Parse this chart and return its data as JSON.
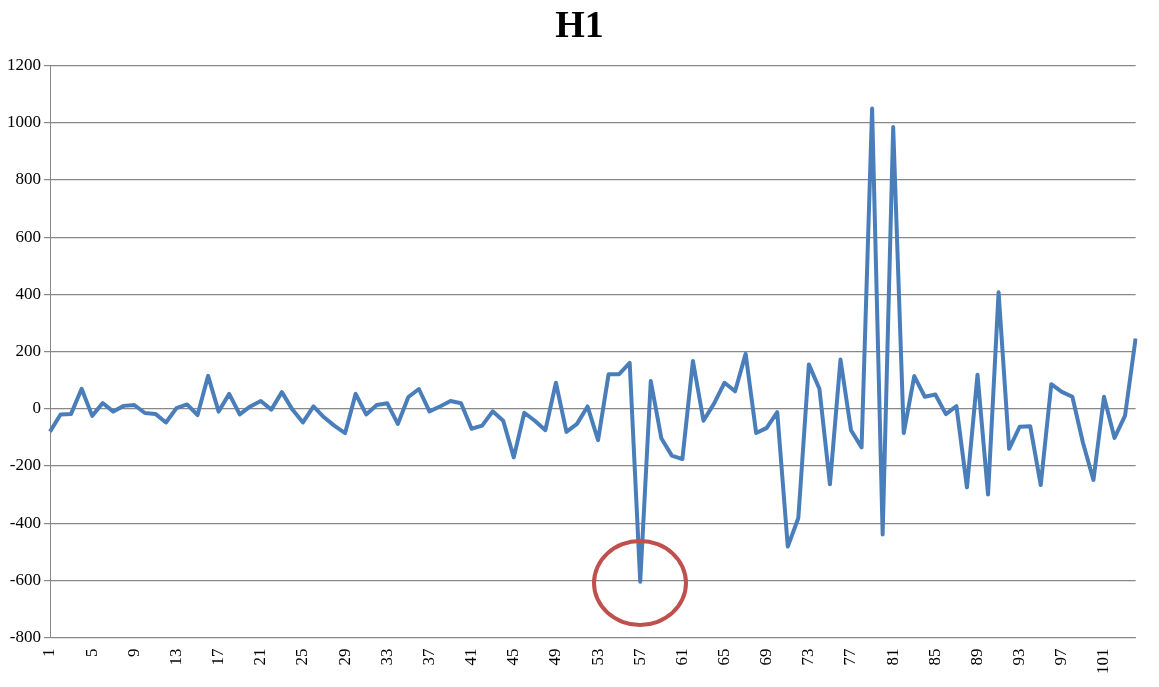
{
  "chart_data": {
    "type": "line",
    "title": "H1",
    "categories": [
      "1",
      null,
      null,
      null,
      "5",
      null,
      null,
      null,
      "9",
      null,
      null,
      null,
      "13",
      null,
      null,
      null,
      "17",
      null,
      null,
      null,
      "21",
      null,
      null,
      null,
      "25",
      null,
      null,
      null,
      "29",
      null,
      null,
      null,
      "33",
      null,
      null,
      null,
      "37",
      null,
      null,
      null,
      "41",
      null,
      null,
      null,
      "45",
      null,
      null,
      null,
      "49",
      null,
      null,
      null,
      "53",
      null,
      null,
      null,
      "57",
      null,
      null,
      null,
      "61",
      null,
      null,
      null,
      "65",
      null,
      null,
      null,
      "69",
      null,
      null,
      null,
      "73",
      null,
      null,
      null,
      "77",
      null,
      null,
      null,
      "81",
      null,
      null,
      null,
      "85",
      null,
      null,
      null,
      "89",
      null,
      null,
      null,
      "93",
      null,
      null,
      null,
      "97",
      null,
      null,
      null,
      "101",
      null,
      null,
      null
    ],
    "series": [
      {
        "color": "#4a7ebb",
        "values": [
          -80,
          -20,
          -18,
          70,
          -25,
          20,
          -10,
          10,
          13,
          -15,
          -18,
          -48,
          2,
          15,
          -22,
          115,
          -10,
          52,
          -20,
          8,
          27,
          -3,
          58,
          -3,
          -48,
          8,
          -30,
          -60,
          -85,
          52,
          -20,
          13,
          19,
          -53,
          41,
          69,
          -9,
          8,
          27,
          19,
          -70,
          -59,
          -9,
          -42,
          -170,
          -14,
          -42,
          -75,
          91,
          -81,
          -53,
          8,
          -110,
          121,
          121,
          160,
          -605,
          97,
          -103,
          -164,
          -176,
          167,
          -42,
          18,
          91,
          61,
          192,
          -85,
          -67,
          -12,
          -482,
          -382,
          155,
          70,
          -264,
          172,
          -75,
          -135,
          1050,
          -440,
          985,
          -85,
          114,
          42,
          50,
          -19,
          9,
          -275,
          119,
          -300,
          407,
          -140,
          -63,
          -61,
          -267,
          86,
          59,
          42,
          -118,
          -249,
          42,
          -102,
          -24,
          246
        ]
      }
    ],
    "ylim": [
      -800,
      1200
    ],
    "yticks": [
      -800,
      -600,
      -400,
      -200,
      0,
      200,
      400,
      600,
      800,
      1000,
      1200
    ],
    "grid": "y",
    "legend": false,
    "marker": "none",
    "line_style": "solid"
  }
}
